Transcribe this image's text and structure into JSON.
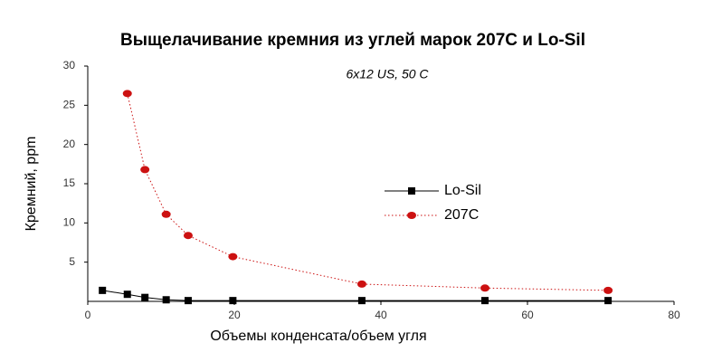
{
  "chart_data": {
    "type": "line",
    "title": "Выщелачивание кремния из углей марок 207С и Lo-Sil",
    "annotation": "6x12 US, 50 C",
    "x_label": "Объемы конденсата/объем угля",
    "y_label": "Кремний, ppm",
    "xlim": [
      0,
      80
    ],
    "xticks": [
      0,
      20,
      40,
      60,
      80
    ],
    "ylim": [
      0,
      30
    ],
    "yticks": [
      5,
      10,
      15,
      20,
      25,
      30
    ],
    "legend": "center",
    "series": [
      {
        "name": "Lo-Sil",
        "color": "#000000",
        "marker": "square",
        "line_style": "solid",
        "x": [
          2.0,
          5.4,
          7.8,
          10.7,
          13.7,
          19.8,
          37.4,
          54.2,
          71.0
        ],
        "values": [
          1.4,
          0.9,
          0.5,
          0.2,
          0.1,
          0.1,
          0.1,
          0.1,
          0.1
        ]
      },
      {
        "name": "207C",
        "color": "#cc1111",
        "marker": "circle",
        "line_style": "dotted",
        "x": [
          5.4,
          7.8,
          10.7,
          13.7,
          19.8,
          37.4,
          54.2,
          71.0
        ],
        "values": [
          26.5,
          16.8,
          11.1,
          8.4,
          5.7,
          2.2,
          1.7,
          1.4
        ]
      }
    ]
  }
}
